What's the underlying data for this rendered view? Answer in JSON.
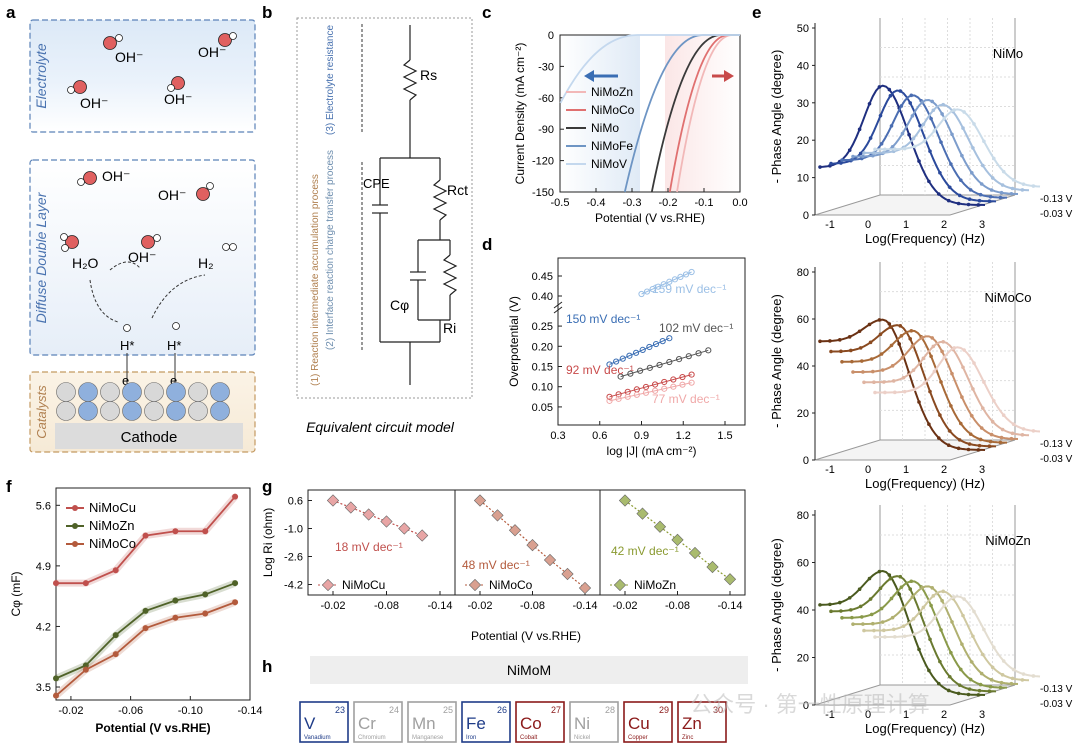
{
  "panel_letters": [
    "a",
    "b",
    "c",
    "d",
    "e",
    "f",
    "g",
    "h"
  ],
  "panel_a": {
    "zone_labels": [
      "Electrolyte",
      "Diffuse Double Layer",
      "Catalysts"
    ],
    "cathode_label": "Cathode",
    "species": [
      "OH⁻",
      "OH⁻",
      "OH⁻",
      "OH⁻",
      "OH⁻",
      "OH⁻",
      "OH⁻",
      "H₂O",
      "H₂",
      "H*",
      "H*",
      "e",
      "e"
    ]
  },
  "panel_b": {
    "caption": "Equivalent circuit model",
    "process_labels": [
      "(3) Electrolyte resistance",
      "(2) Interface reaction charge transfer process",
      "(1) Reaction intermediate accumulation process"
    ],
    "components": [
      "Rs",
      "CPE",
      "Rct",
      "Cφ",
      "Ri"
    ]
  },
  "chart_data": [
    {
      "id": "c",
      "type": "line",
      "xlabel": "Potential (V vs.RHE)",
      "ylabel": "Current Density (mA cm⁻²)",
      "xlim": [
        -0.5,
        0.0
      ],
      "ylim": [
        -150,
        0
      ],
      "xticks": [
        "-0.5",
        "-0.4",
        "-0.3",
        "-0.2",
        "-0.1",
        "0.0"
      ],
      "yticks": [
        "0",
        "-30",
        "-60",
        "-90",
        "-120",
        "-150"
      ],
      "series": [
        {
          "name": "NiMoZn",
          "color": "#f2b8b8",
          "onset": -0.02,
          "x150": -0.175
        },
        {
          "name": "NiMoCo",
          "color": "#e07070",
          "onset": -0.03,
          "x150": -0.195
        },
        {
          "name": "NiMo",
          "color": "#3a3a3a",
          "onset": -0.05,
          "x150": -0.245
        },
        {
          "name": "NiMoFe",
          "color": "#6e95c4",
          "onset": -0.1,
          "x150": -0.32
        },
        {
          "name": "NiMoV",
          "color": "#c4d8ee",
          "onset": -0.28,
          "x150": -0.6
        }
      ]
    },
    {
      "id": "d",
      "type": "line",
      "xlabel": "log |J| (mA cm⁻²)",
      "ylabel": "Overpotential (V)",
      "xticks": [
        "0.3",
        "0.6",
        "0.9",
        "1.2",
        "1.5"
      ],
      "yticks_upper": [
        "0.45",
        "0.40"
      ],
      "yticks_lower": [
        "0.25",
        "0.20",
        "0.15",
        "0.10",
        "0.05"
      ],
      "series": [
        {
          "name": "NiMoV",
          "slope_label": "159 mV dec⁻¹",
          "x": [
            0.9,
            1.26
          ],
          "y": [
            0.405,
            0.46
          ],
          "color": "#9cc0e6",
          "break_upper": true
        },
        {
          "name": "NiMoFe",
          "slope_label": "150 mV dec⁻¹",
          "x": [
            0.67,
            1.1
          ],
          "y": [
            0.155,
            0.22
          ],
          "color": "#3a6eb4"
        },
        {
          "name": "NiMo",
          "slope_label": "102 mV dec⁻¹",
          "x": [
            0.75,
            1.38
          ],
          "y": [
            0.125,
            0.19
          ],
          "color": "#555555"
        },
        {
          "name": "NiMoCo",
          "slope_label": "92 mV dec⁻¹",
          "x": [
            0.67,
            1.26
          ],
          "y": [
            0.075,
            0.13
          ],
          "color": "#c84a4a"
        },
        {
          "name": "NiMoZn",
          "slope_label": "77 mV dec⁻¹",
          "x": [
            0.67,
            1.26
          ],
          "y": [
            0.065,
            0.11
          ],
          "color": "#f0a8a8"
        }
      ]
    },
    {
      "id": "e",
      "type": "line",
      "subplots": [
        {
          "title": "NiMo",
          "zlim": [
            0,
            50
          ],
          "zticks": [
            "0",
            "10",
            "20",
            "30",
            "40",
            "50"
          ],
          "palette": "blue",
          "peak": 38
        },
        {
          "title": "NiMoCo",
          "zlim": [
            0,
            80
          ],
          "zticks": [
            "0",
            "20",
            "40",
            "60",
            "80"
          ],
          "palette": "brown",
          "peak": 66
        },
        {
          "title": "NiMoZn",
          "zlim": [
            0,
            80
          ],
          "zticks": [
            "0",
            "20",
            "40",
            "60",
            "80"
          ],
          "palette": "olive",
          "peak": 62
        }
      ],
      "xlabel": "Log(Frequency) (Hz)",
      "zlabel": "- Phase Angle (degree)",
      "xticks": [
        "-1",
        "0",
        "1",
        "2",
        "3"
      ],
      "potential_labels": [
        "-0.13 V",
        "-0.03 V"
      ]
    },
    {
      "id": "f",
      "type": "line",
      "xlabel": "Potential (V vs.RHE)",
      "ylabel": "Cφ (mF)",
      "xlim": [
        -0.01,
        -0.14
      ],
      "ylim": [
        3.35,
        5.8
      ],
      "xticks": [
        "-0.02",
        "-0.06",
        "-0.10",
        "-0.14"
      ],
      "yticks": [
        "3.5",
        "4.2",
        "4.9",
        "5.6"
      ],
      "x": [
        -0.01,
        -0.03,
        -0.05,
        -0.07,
        -0.09,
        -0.11,
        -0.13
      ],
      "series": [
        {
          "name": "NiMoCu",
          "color": "#c0504d",
          "values": [
            4.7,
            4.7,
            4.85,
            5.25,
            5.3,
            5.3,
            5.7
          ]
        },
        {
          "name": "NiMoZn",
          "color": "#4f6228",
          "values": [
            3.6,
            3.75,
            4.1,
            4.38,
            4.5,
            4.57,
            4.7
          ]
        },
        {
          "name": "NiMoCo",
          "color": "#b35a3c",
          "values": [
            3.4,
            3.7,
            3.88,
            4.18,
            4.3,
            4.35,
            4.48
          ]
        }
      ]
    },
    {
      "id": "g",
      "type": "scatter",
      "xlabel": "Potential (V vs.RHE)",
      "ylabel": "Log Ri (ohm)",
      "ylim": [
        -4.8,
        1.2
      ],
      "yticks": [
        "0.6",
        "-1.0",
        "-2.6",
        "-4.2"
      ],
      "xticks": [
        "-0.02",
        "-0.08",
        "-0.14"
      ],
      "x": [
        -0.02,
        -0.04,
        -0.06,
        -0.08,
        -0.1,
        -0.12,
        -0.14
      ],
      "series": [
        {
          "name": "NiMoCu",
          "slope_label": "18 mV dec⁻¹",
          "color": "#e8a5a5",
          "line": "#c0504d",
          "values": [
            0.6,
            0.2,
            -0.2,
            -0.6,
            -1.0,
            -1.4,
            -1.8
          ]
        },
        {
          "name": "NiMoCo",
          "slope_label": "48 mV dec⁻¹",
          "color": "#d9a090",
          "line": "#b35a3c",
          "values": [
            0.6,
            -0.25,
            -1.1,
            -1.95,
            -2.8,
            -3.6,
            -4.4
          ]
        },
        {
          "name": "NiMoZn",
          "slope_label": "42 mV dec⁻¹",
          "color": "#a9bb6e",
          "line": "#8a9a30",
          "values": [
            0.6,
            -0.15,
            -0.9,
            -1.65,
            -2.4,
            -3.2,
            -3.9
          ]
        }
      ]
    }
  ],
  "panel_h": {
    "header": "NiMoM",
    "elements": [
      {
        "symbol": "V",
        "number": "23",
        "name": "Vanadium",
        "color": "#1f3c88"
      },
      {
        "symbol": "Cr",
        "number": "24",
        "name": "Chromium",
        "color": "#a0a0a0"
      },
      {
        "symbol": "Mn",
        "number": "25",
        "name": "Manganese",
        "color": "#a0a0a0"
      },
      {
        "symbol": "Fe",
        "number": "26",
        "name": "Iron",
        "color": "#1f3c88"
      },
      {
        "symbol": "Co",
        "number": "27",
        "name": "Cobalt",
        "color": "#8b1a1a"
      },
      {
        "symbol": "Ni",
        "number": "28",
        "name": "Nickel",
        "color": "#a0a0a0"
      },
      {
        "symbol": "Cu",
        "number": "29",
        "name": "Copper",
        "color": "#8b1a1a"
      },
      {
        "symbol": "Zn",
        "number": "30",
        "name": "Zinc",
        "color": "#8b1a1a"
      }
    ]
  },
  "watermark": "公众号 · 第一性原理计算"
}
